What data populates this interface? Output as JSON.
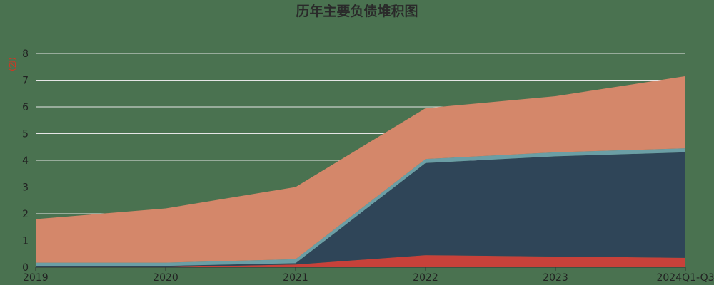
{
  "chart_data": {
    "type": "area",
    "stacked": true,
    "title": "历年主要负债堆积图",
    "ylabel": "(亿)",
    "categories": [
      "2019",
      "2020",
      "2021",
      "2022",
      "2023",
      "2024Q1-Q3"
    ],
    "ylim": [
      0,
      8
    ],
    "yticks": [
      0,
      1,
      2,
      3,
      4,
      5,
      6,
      7,
      8
    ],
    "grid": true,
    "series": [
      {
        "values": [
          0.0,
          0.0,
          0.1,
          0.45,
          0.4,
          0.35
        ],
        "color": "#c8413a"
      },
      {
        "values": [
          0.05,
          0.05,
          0.05,
          3.45,
          3.75,
          3.95
        ],
        "color": "#2f4558"
      },
      {
        "values": [
          0.12,
          0.12,
          0.15,
          0.15,
          0.15,
          0.15
        ],
        "color": "#6b9ea5"
      },
      {
        "values": [
          1.63,
          2.03,
          2.7,
          1.9,
          2.1,
          2.7
        ],
        "color": "#d4876a"
      }
    ]
  }
}
